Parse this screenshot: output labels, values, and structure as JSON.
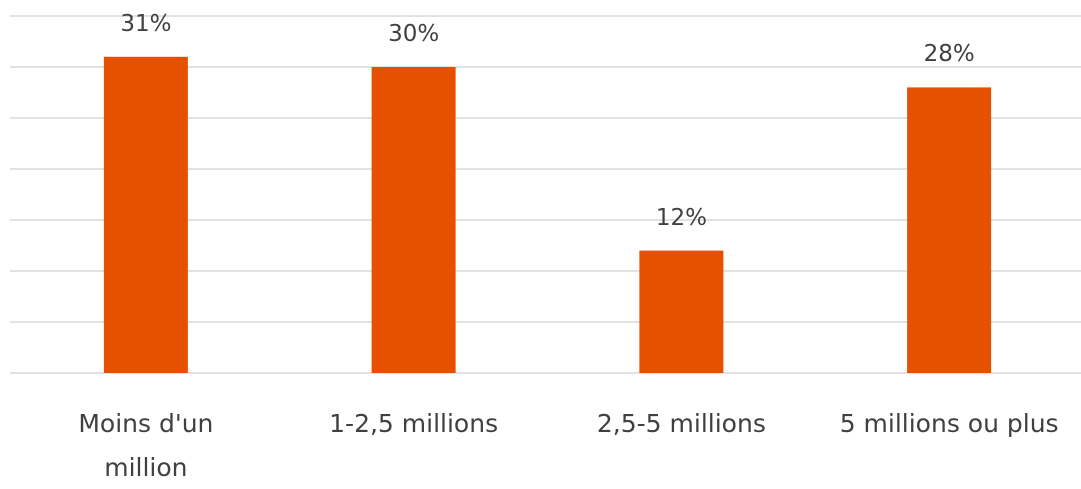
{
  "chart_data": {
    "type": "bar",
    "categories": [
      "Moins d'un million",
      "1-2,5 millions",
      "2,5-5 millions",
      "5 millions ou plus"
    ],
    "values": [
      31,
      30,
      12,
      28
    ],
    "value_labels": [
      "31%",
      "30%",
      "12%",
      "28%"
    ],
    "color": "#e65100",
    "ylim": [
      0,
      35
    ],
    "yticks": [
      0,
      5,
      10,
      15,
      20,
      25,
      30,
      35
    ],
    "grid": true
  }
}
